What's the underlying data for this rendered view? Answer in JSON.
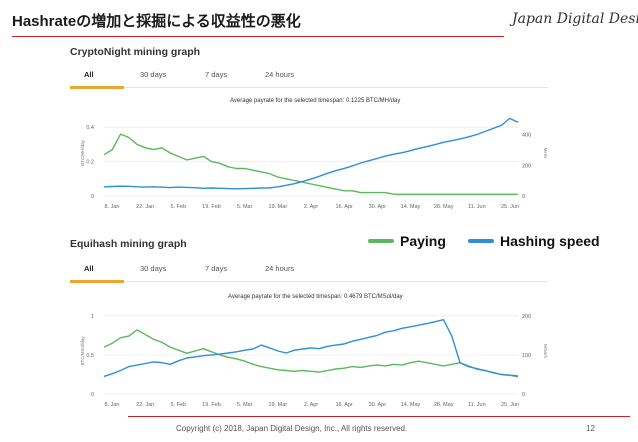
{
  "slide": {
    "title": "Hashrateの増加と採掘による収益性の悪化",
    "brand": "Japan Digital Design",
    "copyright": "Copyright (c) 2018, Japan Digital Design, Inc., All rights reserved.",
    "page_number": "12"
  },
  "colors": {
    "paying": "#5cb85c",
    "hashing": "#2e8fd6",
    "accent_rule": "#c8202a",
    "tab_active": "#f0a530"
  },
  "legend": [
    {
      "label": "Paying",
      "color": "#5cb85c"
    },
    {
      "label": "Hashing speed",
      "color": "#2e8fd6"
    }
  ],
  "panels": [
    {
      "title": "CryptoNight mining graph",
      "tabs": [
        "All",
        "30 days",
        "7 days",
        "24 hours"
      ],
      "active_tab": "All",
      "payrate": "Average payrate for the selected timespan: 0.1225 BTC/MH/day"
    },
    {
      "title": "Equihash mining graph",
      "tabs": [
        "All",
        "30 days",
        "7 days",
        "24 hours"
      ],
      "active_tab": "All",
      "payrate": "Average payrate for the selected timespan: 0.4679 BTC/MSol/day"
    }
  ],
  "chart_data": [
    {
      "type": "line",
      "title": "CryptoNight mining graph",
      "x_ticks": [
        "8. Jan",
        "22. Jan",
        "5. Feb",
        "19. Feb",
        "5. Mar",
        "19. Mar",
        "2. Apr",
        "16. Apr",
        "30. Apr",
        "14. May",
        "28. May",
        "11. Jun",
        "25. Jun"
      ],
      "y_left": {
        "label": "BTC/MH/day",
        "ticks": [
          "0",
          "0.2",
          "0.4"
        ],
        "range": [
          0,
          0.5
        ]
      },
      "y_right": {
        "label": "MH/s",
        "ticks": [
          "0",
          "200",
          "400"
        ],
        "range": [
          0,
          560
        ]
      },
      "series": [
        {
          "name": "Paying",
          "axis": "left",
          "color": "#5cb85c",
          "x": [
            0,
            2,
            4,
            6,
            8,
            10,
            12,
            14,
            16,
            18,
            20,
            22,
            24,
            26,
            28,
            30,
            32,
            34,
            36,
            38,
            40,
            42,
            44,
            46,
            48,
            50,
            52,
            54,
            56,
            58,
            60,
            62,
            64,
            66,
            68,
            70,
            72,
            74,
            76,
            78,
            80,
            82,
            84,
            86,
            88,
            90,
            92,
            94,
            96,
            98,
            100
          ],
          "values": [
            0.24,
            0.27,
            0.36,
            0.34,
            0.3,
            0.28,
            0.27,
            0.28,
            0.25,
            0.23,
            0.21,
            0.22,
            0.23,
            0.2,
            0.19,
            0.17,
            0.16,
            0.16,
            0.15,
            0.14,
            0.13,
            0.11,
            0.1,
            0.09,
            0.08,
            0.07,
            0.06,
            0.05,
            0.04,
            0.03,
            0.03,
            0.02,
            0.02,
            0.02,
            0.02,
            0.01,
            0.01,
            0.01,
            0.01,
            0.01,
            0.01,
            0.01,
            0.01,
            0.01,
            0.01,
            0.01,
            0.01,
            0.01,
            0.01,
            0.01,
            0.01
          ]
        },
        {
          "name": "Hashing speed",
          "axis": "right",
          "color": "#2e8fd6",
          "x": [
            0,
            2,
            4,
            6,
            8,
            10,
            12,
            14,
            16,
            18,
            20,
            22,
            24,
            26,
            28,
            30,
            32,
            34,
            36,
            38,
            40,
            42,
            44,
            46,
            48,
            50,
            52,
            54,
            56,
            58,
            60,
            62,
            64,
            66,
            68,
            70,
            72,
            74,
            76,
            78,
            80,
            82,
            84,
            86,
            88,
            90,
            92,
            94,
            96,
            98,
            100
          ],
          "values": [
            60,
            62,
            64,
            63,
            60,
            58,
            60,
            57,
            55,
            58,
            56,
            54,
            50,
            52,
            50,
            48,
            47,
            48,
            50,
            52,
            53,
            60,
            70,
            80,
            95,
            110,
            128,
            148,
            165,
            180,
            196,
            215,
            230,
            245,
            260,
            272,
            282,
            295,
            310,
            322,
            335,
            350,
            360,
            372,
            385,
            400,
            420,
            440,
            460,
            505,
            480
          ]
        }
      ]
    },
    {
      "type": "line",
      "title": "Equihash mining graph",
      "x_ticks": [
        "8. Jan",
        "22. Jan",
        "5. Feb",
        "19. Feb",
        "5. Mar",
        "19. Mar",
        "2. Apr",
        "16. Apr",
        "30. Apr",
        "14. May",
        "28. May",
        "11. Jun",
        "25. Jun"
      ],
      "y_left": {
        "label": "BTC/MSol/day",
        "ticks": [
          "0",
          "0.5",
          "1"
        ],
        "range": [
          0,
          1.1
        ]
      },
      "y_right": {
        "label": "MSol/s",
        "ticks": [
          "0",
          "100",
          "200"
        ],
        "range": [
          0,
          220
        ]
      },
      "series": [
        {
          "name": "Paying",
          "axis": "left",
          "color": "#5cb85c",
          "x": [
            0,
            2,
            4,
            6,
            8,
            10,
            12,
            14,
            16,
            18,
            20,
            22,
            24,
            26,
            28,
            30,
            32,
            34,
            36,
            38,
            40,
            42,
            44,
            46,
            48,
            50,
            52,
            54,
            56,
            58,
            60,
            62,
            64,
            66,
            68,
            70,
            72,
            74,
            76,
            78,
            80,
            82,
            84,
            86,
            88,
            90,
            92,
            94,
            96,
            98,
            100
          ],
          "values": [
            0.6,
            0.65,
            0.72,
            0.74,
            0.82,
            0.76,
            0.7,
            0.66,
            0.6,
            0.56,
            0.52,
            0.55,
            0.58,
            0.54,
            0.5,
            0.47,
            0.45,
            0.42,
            0.38,
            0.35,
            0.33,
            0.31,
            0.3,
            0.29,
            0.3,
            0.29,
            0.28,
            0.3,
            0.32,
            0.33,
            0.35,
            0.34,
            0.36,
            0.37,
            0.36,
            0.38,
            0.37,
            0.4,
            0.42,
            0.4,
            0.38,
            0.36,
            0.38,
            0.4,
            0.36,
            0.32,
            0.3,
            0.27,
            0.25,
            0.24,
            0.22
          ]
        },
        {
          "name": "Hashing speed",
          "axis": "right",
          "color": "#2e8fd6",
          "x": [
            0,
            2,
            4,
            6,
            8,
            10,
            12,
            14,
            16,
            18,
            20,
            22,
            24,
            26,
            28,
            30,
            32,
            34,
            36,
            38,
            40,
            42,
            44,
            46,
            48,
            50,
            52,
            54,
            56,
            58,
            60,
            62,
            64,
            66,
            68,
            70,
            72,
            74,
            76,
            78,
            80,
            82,
            84,
            86,
            88,
            90,
            92,
            94,
            96,
            98,
            100
          ],
          "values": [
            45,
            52,
            60,
            70,
            74,
            78,
            82,
            80,
            76,
            85,
            92,
            95,
            98,
            100,
            102,
            105,
            108,
            112,
            115,
            125,
            118,
            110,
            105,
            112,
            115,
            118,
            116,
            122,
            125,
            128,
            135,
            140,
            145,
            150,
            158,
            162,
            168,
            172,
            176,
            180,
            185,
            190,
            148,
            80,
            70,
            65,
            60,
            55,
            50,
            48,
            46
          ]
        }
      ]
    }
  ]
}
